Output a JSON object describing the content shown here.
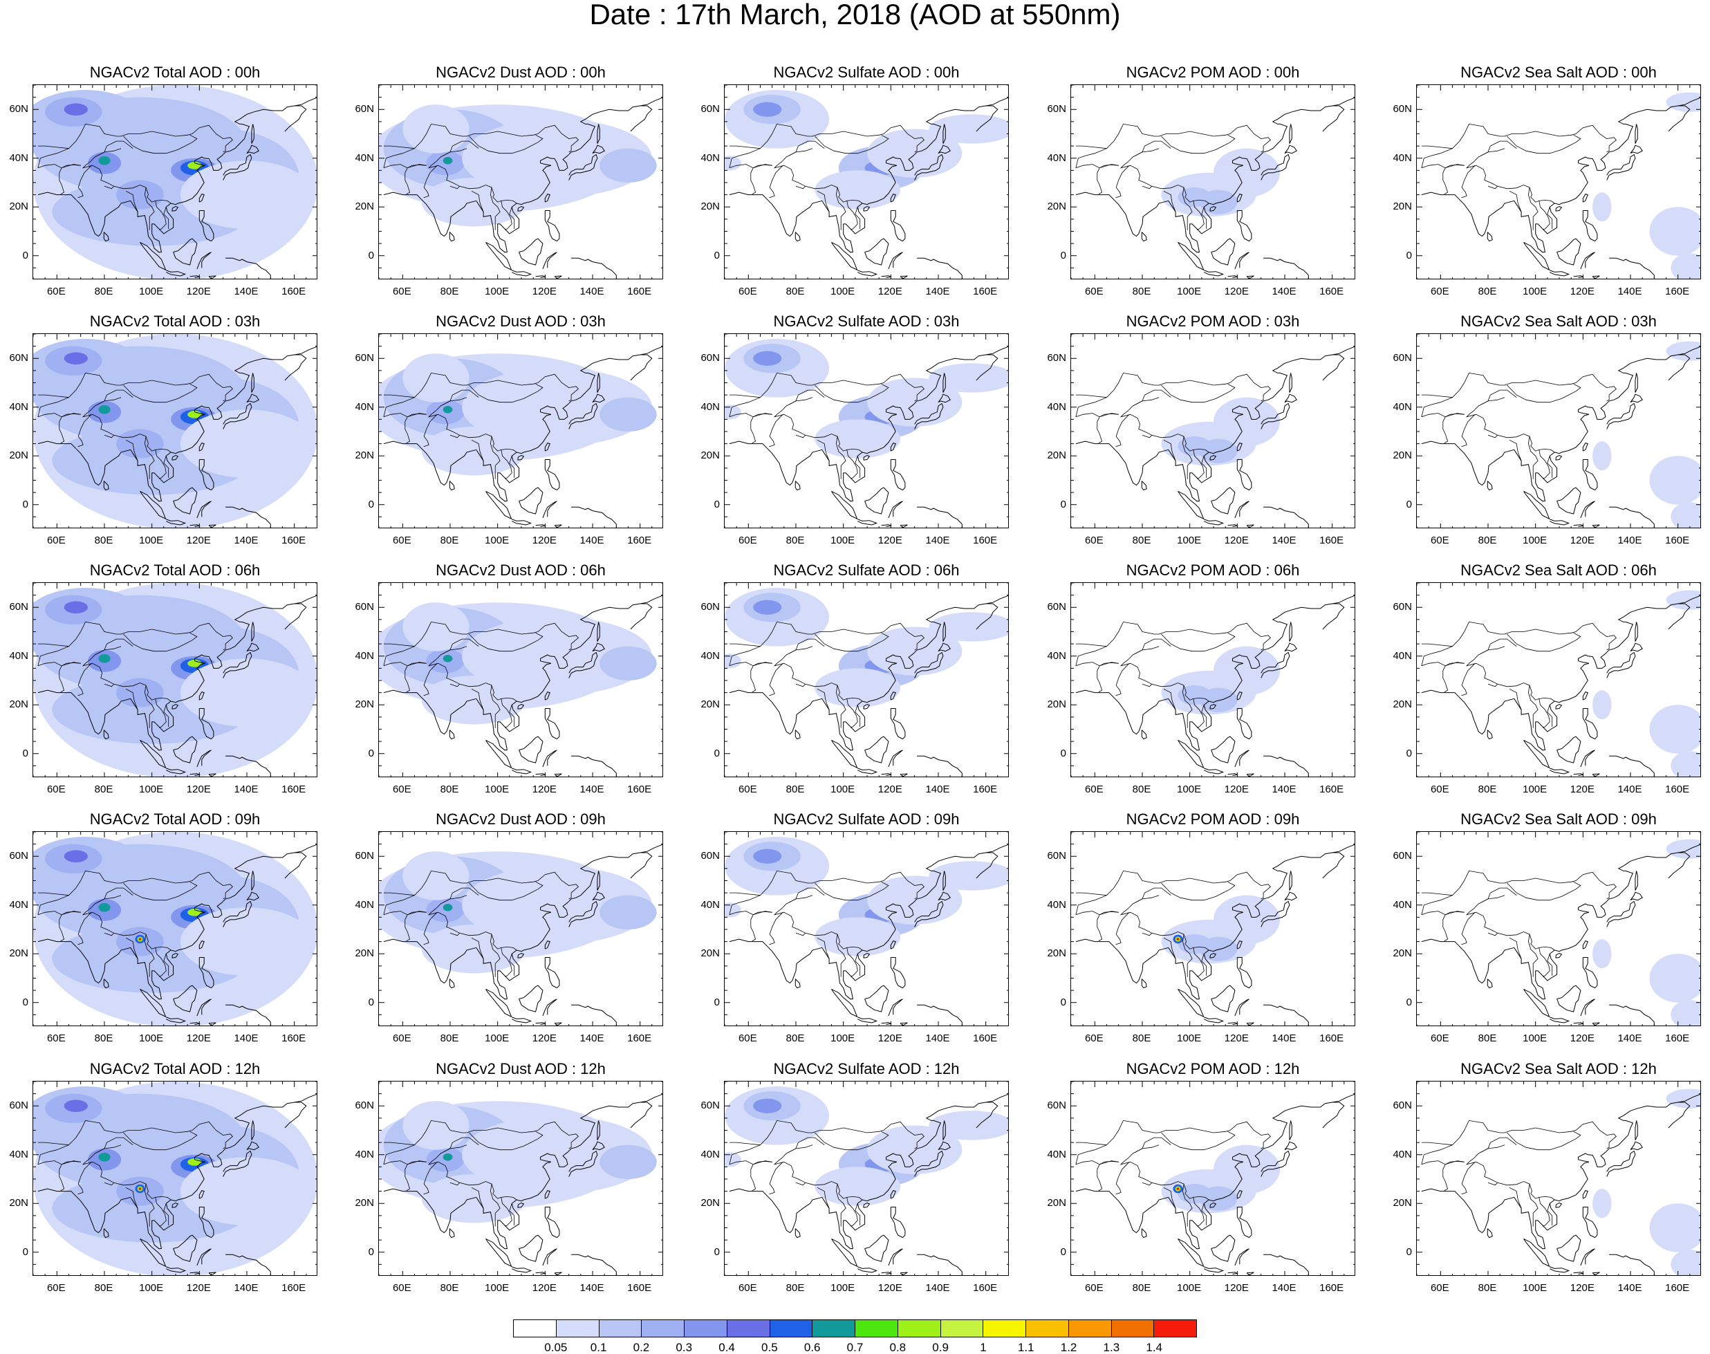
{
  "title": "Date : 17th March, 2018 (AOD at 550nm)",
  "panels": [
    [
      "NGACv2 Total AOD : 00h",
      "NGACv2 Dust AOD : 00h",
      "NGACv2 Sulfate AOD : 00h",
      "NGACv2 POM AOD : 00h",
      "NGACv2 Sea Salt AOD : 00h"
    ],
    [
      "NGACv2 Total AOD : 03h",
      "NGACv2 Dust AOD : 03h",
      "NGACv2 Sulfate AOD : 03h",
      "NGACv2 POM AOD : 03h",
      "NGACv2 Sea Salt AOD : 03h"
    ],
    [
      "NGACv2 Total AOD : 06h",
      "NGACv2 Dust AOD : 06h",
      "NGACv2 Sulfate AOD : 06h",
      "NGACv2 POM AOD : 06h",
      "NGACv2 Sea Salt AOD : 06h"
    ],
    [
      "NGACv2 Total AOD : 09h",
      "NGACv2 Dust AOD : 09h",
      "NGACv2 Sulfate AOD : 09h",
      "NGACv2 POM AOD : 09h",
      "NGACv2 Sea Salt  AOD : 09h"
    ],
    [
      "NGACv2 Total AOD  : 12h",
      "NGACv2 Dust AOD : 12h",
      "NGACv2 Sulfate AOD : 12h",
      "NGACv2 POM  AOD : 12h",
      "NGACv2 Sea Salt  AOD : 12h"
    ]
  ],
  "axes": {
    "lon_ticks": [
      "60E",
      "80E",
      "100E",
      "120E",
      "140E",
      "160E"
    ],
    "lat_ticks": [
      "60N",
      "40N",
      "20N",
      "0"
    ],
    "lon_range": [
      50,
      170
    ],
    "lat_range": [
      -10,
      70
    ]
  },
  "colorbar": {
    "labels": [
      "0.05",
      "0.1",
      "0.2",
      "0.3",
      "0.4",
      "0.5",
      "0.6",
      "0.7",
      "0.8",
      "0.9",
      "1",
      "1.1",
      "1.2",
      "1.3",
      "1.4"
    ],
    "colors": [
      "#ffffff",
      "#d4dcfa",
      "#b8c6f6",
      "#9fb1f2",
      "#8296ee",
      "#6a6fe6",
      "#1f62e8",
      "#129a9a",
      "#4ee60f",
      "#9ef018",
      "#c6f340",
      "#f7f500",
      "#f8c000",
      "#f89800",
      "#f07000",
      "#f61c0c"
    ]
  }
}
